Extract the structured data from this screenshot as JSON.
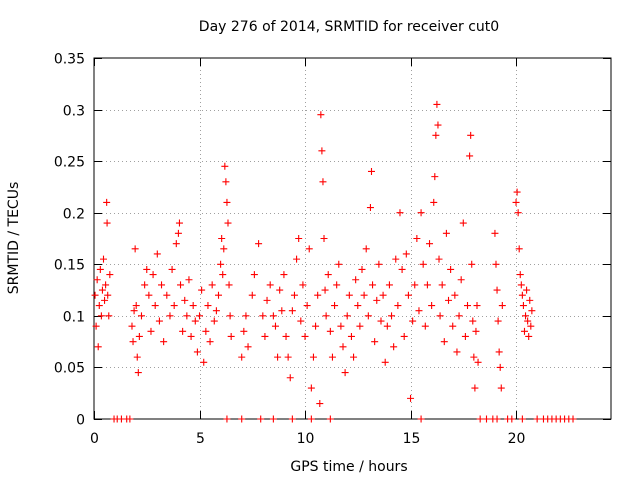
{
  "chart_data": {
    "type": "scatter",
    "title": "Day 276 of 2014, SRMTID for receiver cut0",
    "xlabel": "GPS time / hours",
    "ylabel": "SRMTID / TECUs",
    "xlim": [
      0,
      24.5
    ],
    "ylim": [
      0,
      0.35
    ],
    "xticks": [
      0,
      5,
      10,
      15,
      20
    ],
    "yticks": [
      0,
      0.05,
      0.1,
      0.15,
      0.2,
      0.25,
      0.3,
      0.35
    ],
    "xtick_labels": [
      "0",
      "5",
      "10",
      "15",
      "20"
    ],
    "ytick_labels": [
      "0",
      "0.05",
      "0.1",
      "0.15",
      "0.2",
      "0.25",
      "0.3",
      "0.35"
    ],
    "grid": true,
    "marker": "+",
    "color": "#ff0000",
    "series": [
      {
        "name": "SRMTID",
        "points": [
          [
            0.05,
            0.12
          ],
          [
            0.1,
            0.09
          ],
          [
            0.15,
            0.135
          ],
          [
            0.2,
            0.07
          ],
          [
            0.25,
            0.11
          ],
          [
            0.3,
            0.145
          ],
          [
            0.35,
            0.1
          ],
          [
            0.4,
            0.125
          ],
          [
            0.45,
            0.155
          ],
          [
            0.5,
            0.115
          ],
          [
            0.55,
            0.13
          ],
          [
            0.6,
            0.21
          ],
          [
            0.62,
            0.19
          ],
          [
            0.65,
            0.12
          ],
          [
            0.7,
            0.1
          ],
          [
            0.75,
            0.14
          ],
          [
            1.8,
            0.09
          ],
          [
            1.85,
            0.075
          ],
          [
            1.9,
            0.105
          ],
          [
            1.95,
            0.165
          ],
          [
            2.0,
            0.11
          ],
          [
            2.05,
            0.06
          ],
          [
            2.1,
            0.045
          ],
          [
            2.15,
            0.08
          ],
          [
            2.25,
            0.1
          ],
          [
            2.4,
            0.13
          ],
          [
            2.5,
            0.145
          ],
          [
            2.6,
            0.12
          ],
          [
            2.7,
            0.085
          ],
          [
            2.8,
            0.14
          ],
          [
            2.9,
            0.11
          ],
          [
            3.0,
            0.16
          ],
          [
            3.1,
            0.095
          ],
          [
            3.2,
            0.13
          ],
          [
            3.3,
            0.075
          ],
          [
            3.45,
            0.12
          ],
          [
            3.6,
            0.1
          ],
          [
            3.7,
            0.145
          ],
          [
            3.8,
            0.11
          ],
          [
            3.9,
            0.17
          ],
          [
            4.0,
            0.18
          ],
          [
            4.05,
            0.19
          ],
          [
            4.1,
            0.13
          ],
          [
            4.2,
            0.085
          ],
          [
            4.3,
            0.115
          ],
          [
            4.4,
            0.1
          ],
          [
            4.5,
            0.135
          ],
          [
            4.6,
            0.08
          ],
          [
            4.7,
            0.11
          ],
          [
            4.8,
            0.095
          ],
          [
            4.9,
            0.065
          ],
          [
            5.0,
            0.1
          ],
          [
            5.1,
            0.125
          ],
          [
            5.2,
            0.055
          ],
          [
            5.3,
            0.085
          ],
          [
            5.4,
            0.11
          ],
          [
            5.5,
            0.075
          ],
          [
            5.6,
            0.13
          ],
          [
            5.7,
            0.095
          ],
          [
            5.8,
            0.105
          ],
          [
            5.9,
            0.12
          ],
          [
            6.0,
            0.15
          ],
          [
            6.05,
            0.175
          ],
          [
            6.1,
            0.14
          ],
          [
            6.15,
            0.165
          ],
          [
            6.2,
            0.245
          ],
          [
            6.25,
            0.23
          ],
          [
            6.3,
            0.21
          ],
          [
            6.35,
            0.19
          ],
          [
            6.4,
            0.13
          ],
          [
            6.45,
            0.1
          ],
          [
            6.5,
            0.08
          ],
          [
            7.0,
            0.06
          ],
          [
            7.1,
            0.085
          ],
          [
            7.2,
            0.1
          ],
          [
            7.3,
            0.07
          ],
          [
            7.5,
            0.12
          ],
          [
            7.6,
            0.14
          ],
          [
            7.8,
            0.17
          ],
          [
            8.0,
            0.1
          ],
          [
            8.1,
            0.08
          ],
          [
            8.2,
            0.115
          ],
          [
            8.35,
            0.13
          ],
          [
            8.5,
            0.1
          ],
          [
            8.6,
            0.09
          ],
          [
            8.7,
            0.06
          ],
          [
            8.8,
            0.125
          ],
          [
            8.9,
            0.105
          ],
          [
            9.0,
            0.14
          ],
          [
            9.1,
            0.08
          ],
          [
            9.2,
            0.06
          ],
          [
            9.3,
            0.04
          ],
          [
            9.4,
            0.105
          ],
          [
            9.5,
            0.12
          ],
          [
            9.6,
            0.155
          ],
          [
            9.7,
            0.175
          ],
          [
            9.8,
            0.095
          ],
          [
            9.9,
            0.13
          ],
          [
            10.0,
            0.08
          ],
          [
            10.1,
            0.11
          ],
          [
            10.2,
            0.165
          ],
          [
            10.3,
            0.03
          ],
          [
            10.4,
            0.06
          ],
          [
            10.5,
            0.09
          ],
          [
            10.6,
            0.12
          ],
          [
            10.7,
            0.015
          ],
          [
            10.75,
            0.295
          ],
          [
            10.8,
            0.26
          ],
          [
            10.85,
            0.23
          ],
          [
            10.9,
            0.175
          ],
          [
            10.95,
            0.125
          ],
          [
            11.0,
            0.1
          ],
          [
            11.1,
            0.14
          ],
          [
            11.2,
            0.085
          ],
          [
            11.3,
            0.06
          ],
          [
            11.4,
            0.11
          ],
          [
            11.5,
            0.13
          ],
          [
            11.6,
            0.15
          ],
          [
            11.7,
            0.09
          ],
          [
            11.8,
            0.07
          ],
          [
            11.9,
            0.045
          ],
          [
            12.0,
            0.1
          ],
          [
            12.1,
            0.12
          ],
          [
            12.2,
            0.08
          ],
          [
            12.3,
            0.06
          ],
          [
            12.4,
            0.135
          ],
          [
            12.5,
            0.11
          ],
          [
            12.6,
            0.09
          ],
          [
            12.7,
            0.145
          ],
          [
            12.8,
            0.12
          ],
          [
            12.9,
            0.165
          ],
          [
            13.0,
            0.1
          ],
          [
            13.1,
            0.205
          ],
          [
            13.15,
            0.24
          ],
          [
            13.2,
            0.13
          ],
          [
            13.3,
            0.075
          ],
          [
            13.4,
            0.115
          ],
          [
            13.5,
            0.15
          ],
          [
            13.6,
            0.095
          ],
          [
            13.7,
            0.12
          ],
          [
            13.8,
            0.055
          ],
          [
            13.9,
            0.09
          ],
          [
            14.0,
            0.13
          ],
          [
            14.1,
            0.1
          ],
          [
            14.2,
            0.07
          ],
          [
            14.3,
            0.155
          ],
          [
            14.4,
            0.11
          ],
          [
            14.5,
            0.2
          ],
          [
            14.6,
            0.145
          ],
          [
            14.7,
            0.08
          ],
          [
            14.8,
            0.16
          ],
          [
            14.9,
            0.12
          ],
          [
            15.0,
            0.02
          ],
          [
            15.1,
            0.095
          ],
          [
            15.2,
            0.13
          ],
          [
            15.3,
            0.175
          ],
          [
            15.4,
            0.105
          ],
          [
            15.5,
            0.2
          ],
          [
            15.6,
            0.15
          ],
          [
            15.7,
            0.09
          ],
          [
            15.8,
            0.13
          ],
          [
            15.9,
            0.17
          ],
          [
            16.0,
            0.11
          ],
          [
            16.1,
            0.21
          ],
          [
            16.15,
            0.235
          ],
          [
            16.2,
            0.275
          ],
          [
            16.25,
            0.305
          ],
          [
            16.3,
            0.285
          ],
          [
            16.35,
            0.155
          ],
          [
            16.4,
            0.1
          ],
          [
            16.5,
            0.13
          ],
          [
            16.6,
            0.075
          ],
          [
            16.7,
            0.18
          ],
          [
            16.8,
            0.115
          ],
          [
            16.9,
            0.145
          ],
          [
            17.0,
            0.09
          ],
          [
            17.1,
            0.12
          ],
          [
            17.2,
            0.065
          ],
          [
            17.3,
            0.1
          ],
          [
            17.4,
            0.135
          ],
          [
            17.5,
            0.19
          ],
          [
            17.6,
            0.08
          ],
          [
            17.7,
            0.11
          ],
          [
            17.8,
            0.255
          ],
          [
            17.85,
            0.275
          ],
          [
            17.9,
            0.15
          ],
          [
            17.95,
            0.095
          ],
          [
            18.0,
            0.06
          ],
          [
            18.05,
            0.03
          ],
          [
            18.1,
            0.085
          ],
          [
            18.15,
            0.11
          ],
          [
            18.2,
            0.055
          ],
          [
            19.0,
            0.18
          ],
          [
            19.05,
            0.15
          ],
          [
            19.1,
            0.125
          ],
          [
            19.15,
            0.095
          ],
          [
            19.2,
            0.065
          ],
          [
            19.25,
            0.05
          ],
          [
            19.3,
            0.03
          ],
          [
            19.35,
            0.11
          ],
          [
            20.0,
            0.21
          ],
          [
            20.05,
            0.22
          ],
          [
            20.1,
            0.2
          ],
          [
            20.15,
            0.165
          ],
          [
            20.2,
            0.14
          ],
          [
            20.25,
            0.13
          ],
          [
            20.3,
            0.12
          ],
          [
            20.35,
            0.11
          ],
          [
            20.4,
            0.085
          ],
          [
            20.45,
            0.1
          ],
          [
            20.5,
            0.125
          ],
          [
            20.55,
            0.095
          ],
          [
            20.6,
            0.08
          ],
          [
            20.65,
            0.115
          ],
          [
            20.7,
            0.09
          ],
          [
            20.75,
            0.105
          ],
          [
            0.95,
            0
          ],
          [
            1.1,
            0
          ],
          [
            1.3,
            0
          ],
          [
            1.55,
            0
          ],
          [
            1.7,
            0
          ],
          [
            6.3,
            0
          ],
          [
            7.0,
            0
          ],
          [
            7.9,
            0
          ],
          [
            8.5,
            0
          ],
          [
            9.4,
            0
          ],
          [
            10.3,
            0
          ],
          [
            11.2,
            0
          ],
          [
            15.5,
            0
          ],
          [
            18.3,
            0
          ],
          [
            18.6,
            0
          ],
          [
            18.9,
            0
          ],
          [
            19.1,
            0
          ],
          [
            19.6,
            0
          ],
          [
            19.8,
            0
          ],
          [
            20.3,
            0
          ],
          [
            21.0,
            0
          ],
          [
            21.3,
            0
          ],
          [
            21.5,
            0
          ],
          [
            21.7,
            0
          ],
          [
            21.9,
            0
          ],
          [
            22.1,
            0
          ],
          [
            22.3,
            0
          ],
          [
            22.5,
            0
          ],
          [
            22.7,
            0
          ]
        ]
      }
    ]
  }
}
